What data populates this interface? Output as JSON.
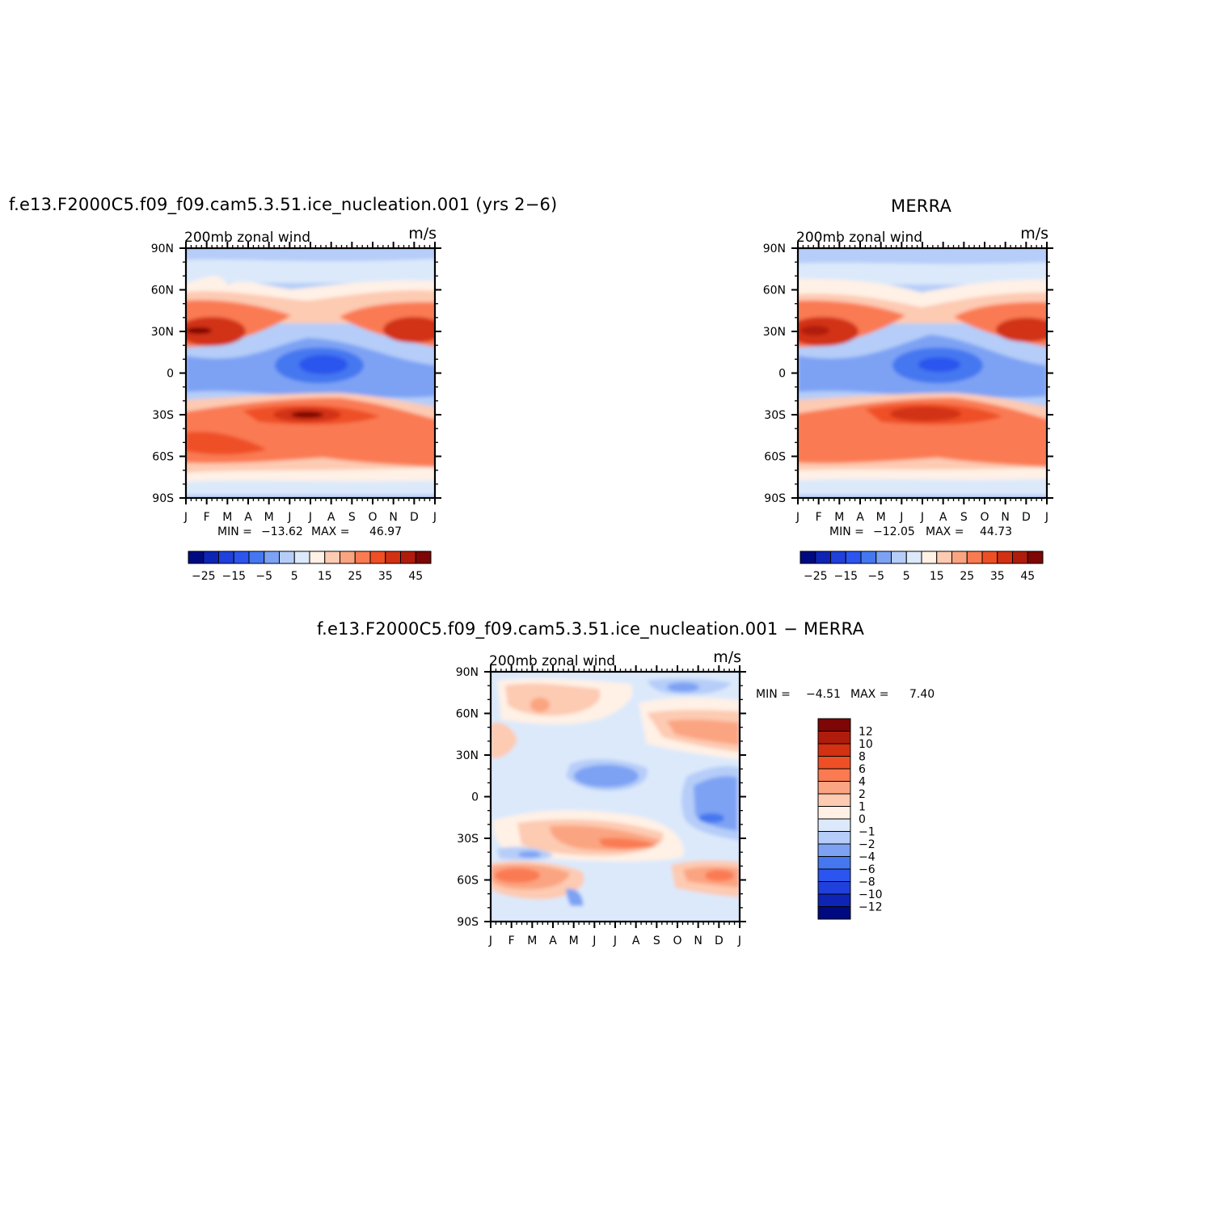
{
  "chart_data": [
    {
      "type": "heatmap",
      "panel": "model",
      "title": "f.e13.F2000C5.f09_f09.cam5.3.51.ice_nucleation.001 (yrs 2−6)",
      "subtitle": "200mb zonal wind",
      "units": "m/s",
      "xlabels": [
        "J",
        "F",
        "M",
        "A",
        "M",
        "J",
        "J",
        "A",
        "S",
        "O",
        "N",
        "D",
        "J"
      ],
      "ylabels": [
        "90N",
        "60N",
        "30N",
        "0",
        "30S",
        "60S",
        "90S"
      ],
      "ylim": [
        -90,
        90
      ],
      "min_label": "MIN =",
      "min_value": "−13.62",
      "max_label": "MAX =",
      "max_value": "46.97",
      "colorbar_labels": [
        "−25",
        "−15",
        "−5",
        "5",
        "15",
        "25",
        "35",
        "45"
      ]
    },
    {
      "type": "heatmap",
      "panel": "obs",
      "title": "MERRA",
      "subtitle": "200mb zonal wind",
      "units": "m/s",
      "xlabels": [
        "J",
        "F",
        "M",
        "A",
        "M",
        "J",
        "J",
        "A",
        "S",
        "O",
        "N",
        "D",
        "J"
      ],
      "ylabels": [
        "90N",
        "60N",
        "30N",
        "0",
        "30S",
        "60S",
        "90S"
      ],
      "ylim": [
        -90,
        90
      ],
      "min_label": "MIN =",
      "min_value": "−12.05",
      "max_label": "MAX =",
      "max_value": "44.73",
      "colorbar_labels": [
        "−25",
        "−15",
        "−5",
        "5",
        "15",
        "25",
        "35",
        "45"
      ]
    },
    {
      "type": "heatmap",
      "panel": "diff",
      "title": "f.e13.F2000C5.f09_f09.cam5.3.51.ice_nucleation.001 − MERRA",
      "subtitle": "200mb zonal wind",
      "units": "m/s",
      "xlabels": [
        "J",
        "F",
        "M",
        "A",
        "M",
        "J",
        "J",
        "A",
        "S",
        "O",
        "N",
        "D",
        "J"
      ],
      "ylabels": [
        "90N",
        "60N",
        "30N",
        "0",
        "30S",
        "60S",
        "90S"
      ],
      "ylim": [
        -90,
        90
      ],
      "min_label": "MIN =",
      "min_value": "−4.51",
      "max_label": "MAX =",
      "max_value": "7.40",
      "colorbar_labels": [
        "12",
        "10",
        "8",
        "6",
        "4",
        "2",
        "1",
        "0",
        "−1",
        "−2",
        "−4",
        "−6",
        "−8",
        "−10",
        "−12"
      ]
    }
  ],
  "palette_main": [
    "#000a80",
    "#0e24b4",
    "#1f40db",
    "#2b55ee",
    "#4577f0",
    "#7da2f4",
    "#b5cdf8",
    "#dce9fb",
    "#fff1e6",
    "#fdcab2",
    "#fba481",
    "#fa7a52",
    "#ef4f25",
    "#d23112",
    "#b01c0b",
    "#7e0606"
  ],
  "palette_diff": [
    "#7e0606",
    "#b01c0b",
    "#d23112",
    "#ef4f25",
    "#fa7a52",
    "#fba481",
    "#fdcab2",
    "#fff1e6",
    "#dce9fb",
    "#b5cdf8",
    "#7da2f4",
    "#4577f0",
    "#2b55ee",
    "#1f40db",
    "#0e24b4",
    "#000a80"
  ]
}
